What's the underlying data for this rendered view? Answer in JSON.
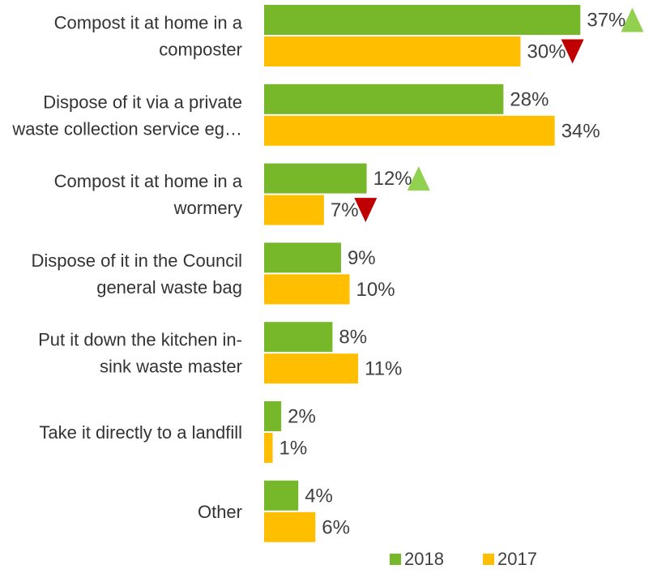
{
  "chart_data": {
    "type": "bar",
    "orientation": "horizontal",
    "categories": [
      [
        "Compost it at home in a",
        "composter"
      ],
      [
        "Dispose of it via a private",
        "waste collection service eg…"
      ],
      [
        "Compost it at home in a",
        "wormery"
      ],
      [
        "Dispose of it in the Council",
        "general waste bag"
      ],
      [
        "Put it down the kitchen in-",
        "sink waste master"
      ],
      [
        "Take it directly to a landfill"
      ],
      [
        "Other"
      ]
    ],
    "series": [
      {
        "name": "2018",
        "color": "#77b82a",
        "values": [
          37,
          28,
          12,
          9,
          8,
          2,
          4
        ],
        "labels": [
          "37%",
          "28%",
          "12%",
          "9%",
          "8%",
          "2%",
          "4%"
        ],
        "change_markers": [
          "up",
          null,
          "up",
          null,
          null,
          null,
          null
        ]
      },
      {
        "name": "2017",
        "color": "#ffbf00",
        "values": [
          30,
          34,
          7,
          10,
          11,
          1,
          6
        ],
        "labels": [
          "30%",
          "34%",
          "7%",
          "10%",
          "11%",
          "1%",
          "6%"
        ],
        "change_markers": [
          "down",
          null,
          "down",
          null,
          null,
          null,
          null
        ]
      }
    ],
    "value_unit": "%",
    "legend": {
      "position": "bottom",
      "entries": [
        "2018",
        "2017"
      ]
    },
    "marker_colors": {
      "up": "#92d050",
      "down": "#c00000"
    },
    "grid": false
  }
}
